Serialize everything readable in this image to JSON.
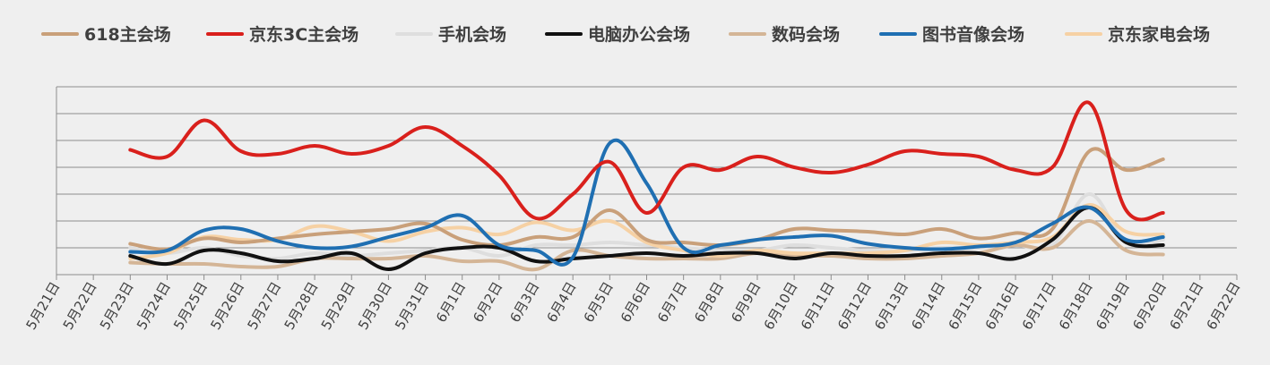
{
  "chart_data": {
    "type": "line",
    "title": "",
    "xlabel": "",
    "ylabel": "",
    "ylim": [
      0,
      7
    ],
    "grid": true,
    "legend_position": "top",
    "categories": [
      "5月21日",
      "5月22日",
      "5月23日",
      "5月24日",
      "5月25日",
      "5月26日",
      "5月27日",
      "5月28日",
      "5月29日",
      "5月30日",
      "5月31日",
      "6月1日",
      "6月2日",
      "6月3日",
      "6月4日",
      "6月5日",
      "6月6日",
      "6月7日",
      "6月8日",
      "6月9日",
      "6月10日",
      "6月11日",
      "6月12日",
      "6月13日",
      "6月14日",
      "6月15日",
      "6月16日",
      "6月17日",
      "6月18日",
      "6月19日",
      "6月20日",
      "6月21日",
      "6月22日"
    ],
    "series": [
      {
        "name": "618主会场",
        "color": "#c9a07a",
        "values": [
          null,
          null,
          1.15,
          0.95,
          1.35,
          1.2,
          1.35,
          1.5,
          1.6,
          1.7,
          1.9,
          1.3,
          1.1,
          1.4,
          1.4,
          2.4,
          1.3,
          1.2,
          1.1,
          1.3,
          1.7,
          1.65,
          1.6,
          1.5,
          1.7,
          1.35,
          1.55,
          1.7,
          4.6,
          3.9,
          4.3,
          null,
          null
        ]
      },
      {
        "name": "京东3C主会场",
        "color": "#d9201c",
        "values": [
          null,
          null,
          4.65,
          4.4,
          5.75,
          4.6,
          4.5,
          4.8,
          4.5,
          4.8,
          5.5,
          4.8,
          3.7,
          2.1,
          3.0,
          4.2,
          2.3,
          4.0,
          3.9,
          4.4,
          4.0,
          3.8,
          4.1,
          4.6,
          4.5,
          4.4,
          3.9,
          4.0,
          6.4,
          2.4,
          2.3,
          null,
          null
        ]
      },
      {
        "name": "手机会场",
        "color": "#dedede",
        "values": [
          null,
          null,
          1.0,
          0.8,
          1.0,
          0.7,
          0.6,
          0.8,
          0.7,
          0.8,
          0.9,
          1.0,
          0.7,
          1.1,
          1.1,
          1.2,
          1.1,
          1.0,
          0.9,
          0.9,
          1.1,
          1.0,
          0.9,
          0.9,
          1.0,
          1.0,
          1.1,
          1.1,
          3.0,
          1.2,
          1.3,
          null,
          null
        ]
      },
      {
        "name": "电脑办公会场",
        "color": "#111111",
        "values": [
          null,
          null,
          0.7,
          0.4,
          0.9,
          0.8,
          0.5,
          0.6,
          0.8,
          0.2,
          0.8,
          1.0,
          1.0,
          0.5,
          0.6,
          0.7,
          0.8,
          0.7,
          0.8,
          0.8,
          0.6,
          0.8,
          0.7,
          0.7,
          0.8,
          0.8,
          0.6,
          1.3,
          2.5,
          1.2,
          1.1,
          null,
          null
        ]
      },
      {
        "name": "数码会场",
        "color": "#d4b596",
        "values": [
          null,
          null,
          0.45,
          0.4,
          0.4,
          0.3,
          0.3,
          0.6,
          0.6,
          0.6,
          0.7,
          0.5,
          0.5,
          0.2,
          0.9,
          0.7,
          0.6,
          0.6,
          0.6,
          0.8,
          0.7,
          0.7,
          0.6,
          0.6,
          0.7,
          0.8,
          1.1,
          1.0,
          2.0,
          0.9,
          0.75,
          null,
          null
        ]
      },
      {
        "name": "图书音像会场",
        "color": "#1f6fb2",
        "values": [
          null,
          null,
          0.85,
          0.9,
          1.65,
          1.7,
          1.25,
          1.0,
          1.05,
          1.4,
          1.75,
          2.2,
          1.1,
          0.9,
          0.65,
          4.9,
          3.4,
          1.0,
          1.1,
          1.3,
          1.4,
          1.45,
          1.15,
          1.0,
          0.95,
          1.05,
          1.2,
          1.9,
          2.5,
          1.3,
          1.4,
          null,
          null
        ]
      },
      {
        "name": "京东家电会场",
        "color": "#f6d1a4",
        "values": [
          null,
          null,
          0.6,
          0.8,
          1.4,
          1.3,
          1.3,
          1.8,
          1.6,
          1.25,
          1.6,
          1.75,
          1.5,
          1.95,
          1.65,
          2.0,
          1.2,
          0.9,
          0.7,
          0.9,
          0.8,
          0.8,
          0.8,
          0.9,
          1.2,
          1.1,
          1.2,
          1.4,
          2.6,
          1.6,
          1.5,
          null,
          null
        ]
      }
    ]
  }
}
